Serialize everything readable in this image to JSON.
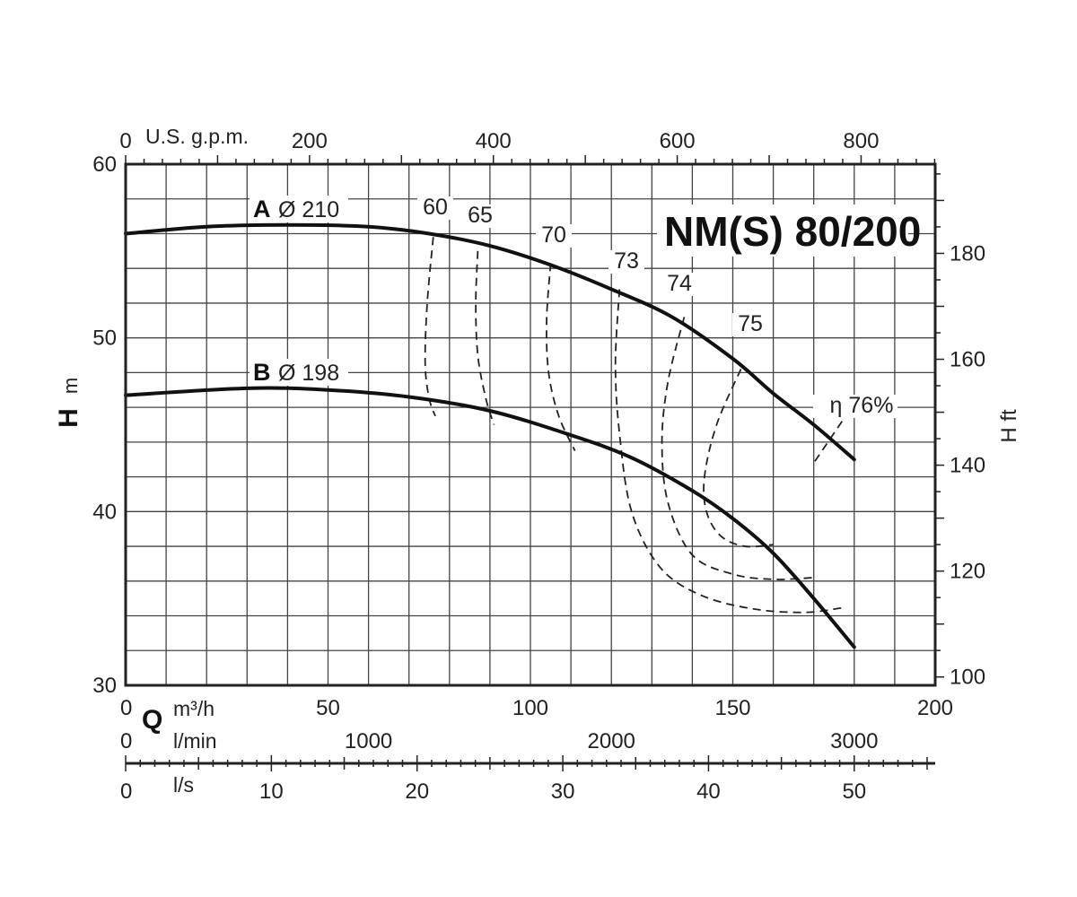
{
  "chart_data": {
    "type": "line",
    "title": "NM(S) 80/200",
    "xlabel": "Q",
    "x_unit": "m³/h",
    "x_unit_lmin": "l/min",
    "x_unit_ls": "l/s",
    "x_unit_gpm": "U.S. g.p.m.",
    "ylabel": "H",
    "y_unit": "m",
    "ylabel_right": "H ft",
    "xlim": [
      0,
      200
    ],
    "ylim": [
      30,
      60
    ],
    "grid": true,
    "x_ticks": [
      "0",
      "50",
      "100",
      "150",
      "200"
    ],
    "y_ticks": [
      "30",
      "40",
      "50",
      "60"
    ],
    "lmin_ticks": [
      "0",
      "1000",
      "2000",
      "3000"
    ],
    "ls_ticks": [
      "0",
      "10",
      "20",
      "30",
      "40",
      "50"
    ],
    "gpm_ticks": [
      "0",
      "200",
      "400",
      "600",
      "800"
    ],
    "ft_ticks": [
      "100",
      "120",
      "140",
      "160",
      "180"
    ],
    "series": [
      {
        "name": "A",
        "label": "Ø 210",
        "x": [
          0,
          20,
          40,
          60,
          75,
          90,
          105,
          120,
          135,
          150,
          160,
          170,
          180
        ],
        "y": [
          56,
          56.4,
          56.5,
          56.4,
          56,
          55.3,
          54.2,
          52.8,
          51.2,
          48.8,
          46.8,
          45,
          43
        ]
      },
      {
        "name": "B",
        "label": "Ø 198",
        "x": [
          0,
          30,
          50,
          70,
          90,
          110,
          125,
          140,
          150,
          160,
          170,
          180
        ],
        "y": [
          46.7,
          47.1,
          47,
          46.6,
          45.8,
          44.4,
          43.1,
          41.2,
          39.6,
          37.6,
          35,
          32.2
        ]
      }
    ],
    "efficiency_curves": [
      {
        "label": "60",
        "x": [
          76,
          74.5,
          74,
          75,
          76.5
        ],
        "y": [
          55.8,
          52,
          48.5,
          46.5,
          45.5
        ]
      },
      {
        "label": "65",
        "x": [
          87,
          86.5,
          87,
          89,
          91
        ],
        "y": [
          55,
          52,
          49,
          46.5,
          45
        ]
      },
      {
        "label": "70",
        "x": [
          105,
          104,
          104.5,
          107,
          111
        ],
        "y": [
          54.3,
          51,
          48,
          45.5,
          43.5
        ]
      },
      {
        "label": "73",
        "x": [
          122,
          121,
          122,
          125,
          132,
          142,
          155,
          168,
          178
        ],
        "y": [
          52.8,
          48.5,
          44.5,
          40,
          36.8,
          35.2,
          34.4,
          34.2,
          34.5
        ]
      },
      {
        "label": "74",
        "x": [
          138,
          134,
          132.5,
          134,
          140,
          150,
          160,
          170
        ],
        "y": [
          51.2,
          47.5,
          44,
          40.5,
          37.5,
          36.4,
          36.1,
          36.2
        ]
      },
      {
        "label": "75",
        "x": [
          152,
          146,
          143,
          143.5,
          147,
          153,
          160
        ],
        "y": [
          48.2,
          45,
          42,
          40,
          38.6,
          38,
          38.1
        ]
      },
      {
        "label": "η 76%",
        "x": [
          177,
          170
        ],
        "y": [
          45.2,
          42.8
        ]
      }
    ]
  }
}
